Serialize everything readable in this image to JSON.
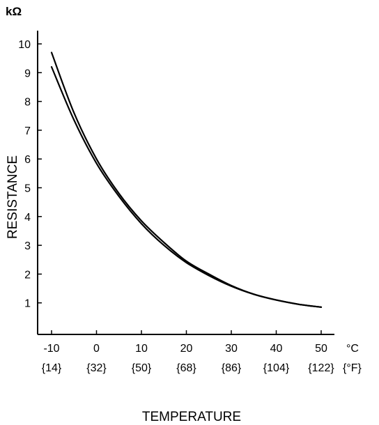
{
  "chart_data": {
    "type": "line",
    "y_unit": "kΩ",
    "ylabel": "RESISTANCE",
    "xlabel": "TEMPERATURE",
    "x_unit_primary": "°C",
    "x_unit_secondary": "{°F}",
    "x_ticks": [
      {
        "c": "-10",
        "f": "{14}"
      },
      {
        "c": "0",
        "f": "{32}"
      },
      {
        "c": "10",
        "f": "{50}"
      },
      {
        "c": "20",
        "f": "{68}"
      },
      {
        "c": "30",
        "f": "{86}"
      },
      {
        "c": "40",
        "f": "{104}"
      },
      {
        "c": "50",
        "f": "{122}"
      }
    ],
    "y_ticks": [
      "1",
      "2",
      "3",
      "4",
      "5",
      "6",
      "7",
      "8",
      "9",
      "10"
    ],
    "xlim": [
      -12.5,
      53
    ],
    "ylim": [
      0,
      10.5
    ],
    "series": [
      {
        "x": [
          -10,
          -5,
          0,
          5,
          10,
          15,
          20,
          25,
          30,
          35,
          40,
          45,
          50
        ],
        "y": [
          9.7,
          7.6,
          6.0,
          4.8,
          3.85,
          3.1,
          2.45,
          2.0,
          1.6,
          1.3,
          1.1,
          0.95,
          0.85
        ]
      },
      {
        "x": [
          -10,
          -5,
          0,
          5,
          10,
          15,
          20,
          25,
          30,
          35,
          40,
          45,
          50
        ],
        "y": [
          9.2,
          7.35,
          5.85,
          4.7,
          3.75,
          3.0,
          2.4,
          1.95,
          1.58,
          1.3,
          1.1,
          0.95,
          0.85
        ]
      }
    ],
    "grid": false,
    "legend": "none"
  }
}
